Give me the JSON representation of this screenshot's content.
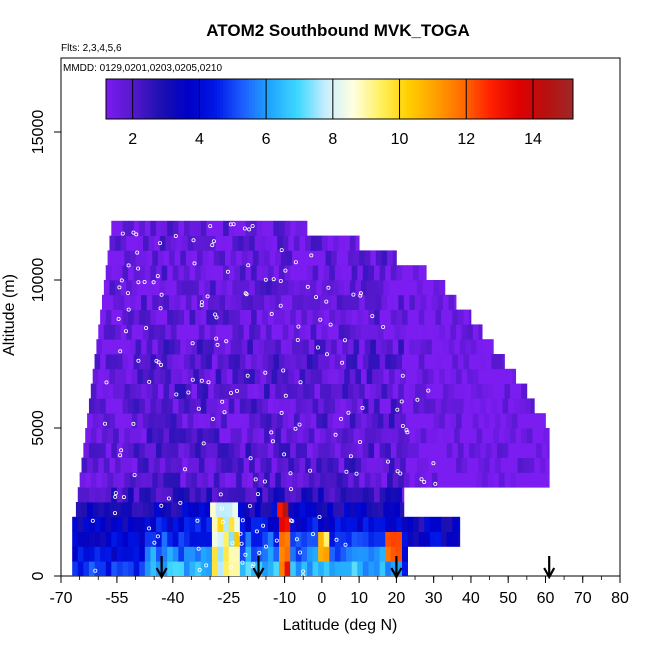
{
  "chart_data": {
    "type": "heatmap",
    "title": "ATOM2 Southbound MVK_TOGA",
    "flights_note": "Flts: 2,3,4,5,6",
    "dates_note": "MMDD: 0129,0201,0203,0205,0210",
    "xlabel": "Latitude (deg N)",
    "ylabel": "Altitude (m)",
    "xlim": [
      -70,
      80
    ],
    "ylim": [
      0,
      17500
    ],
    "x_ticks": [
      -70,
      -55,
      -40,
      -25,
      -10,
      0,
      10,
      20,
      30,
      40,
      50,
      60,
      70,
      80
    ],
    "y_ticks": [
      0,
      5000,
      10000,
      15000
    ],
    "colorbar": {
      "range": [
        1.2,
        15.2
      ],
      "ticks": [
        2,
        4,
        6,
        8,
        10,
        12,
        14
      ],
      "colors": [
        "#7b1cf0",
        "#5518cc",
        "#1c10b0",
        "#0000c8",
        "#0018e8",
        "#1e60ff",
        "#20a8ff",
        "#40d8ff",
        "#c8eeff",
        "#ffffe0",
        "#fff060",
        "#ffd000",
        "#ffa000",
        "#ff6a00",
        "#ff2000",
        "#e00000",
        "#b81010",
        "#a02828"
      ]
    },
    "curtain": {
      "layer_altitude_m": 500,
      "top_altitude_m": 12000,
      "southern_edge_lat": [
        -67,
        -67,
        -67,
        -67,
        -66,
        -65.5,
        -65,
        -64.5,
        -64,
        -63.5,
        -63,
        -62.5,
        -62,
        -61.5,
        -61,
        -60.5,
        -60,
        -59.5,
        -59,
        -58.5,
        -58,
        -57.5,
        -57,
        -56.5
      ],
      "northern_edge_lat": [
        23,
        23,
        37,
        37,
        22,
        22,
        61,
        61,
        61,
        61,
        60,
        57,
        55,
        52,
        49,
        46,
        43,
        40,
        36,
        33,
        28,
        20,
        10,
        -4
      ]
    },
    "enhanced_features": [
      {
        "lat_range": [
          -30,
          -22
        ],
        "alt_range": [
          0,
          2500
        ],
        "peak_value": 10
      },
      {
        "lat_range": [
          -12,
          -9
        ],
        "alt_range": [
          0,
          2500
        ],
        "peak_value": 14
      },
      {
        "lat_range": [
          -1,
          2
        ],
        "alt_range": [
          500,
          1500
        ],
        "peak_value": 12
      },
      {
        "lat_range": [
          17,
          21
        ],
        "alt_range": [
          500,
          1500
        ],
        "peak_value": 14
      }
    ],
    "markers": {
      "type": "arrow",
      "latitudes": [
        -43,
        -17,
        20,
        61
      ]
    }
  }
}
